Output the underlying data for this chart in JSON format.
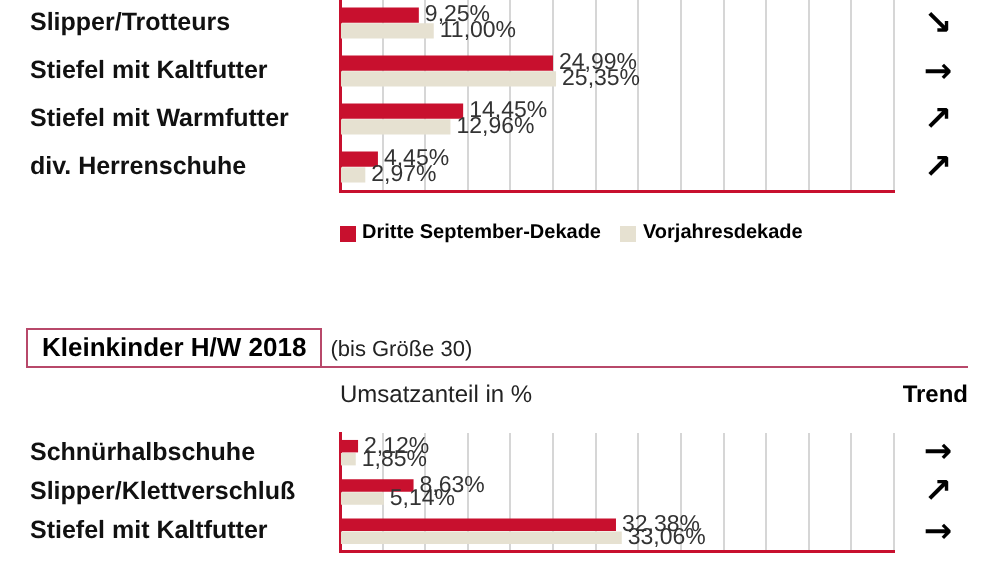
{
  "chart_data": [
    {
      "type": "bar",
      "orientation": "horizontal",
      "categories": [
        "Slipper/Trotteurs",
        "Stiefel mit Kaltfutter",
        "Stiefel mit Warmfutter",
        "div. Herrenschuhe"
      ],
      "series": [
        {
          "name": "Dritte September-Dekade",
          "color": "#c8102e",
          "values": [
            9.25,
            24.99,
            14.45,
            4.45
          ],
          "value_labels": [
            "9,25%",
            "24,99%",
            "14,45%",
            "4,45%"
          ]
        },
        {
          "name": "Vorjahresdekade",
          "color": "#e6e1d1",
          "values": [
            11.0,
            25.35,
            12.96,
            2.97
          ],
          "value_labels": [
            "11,00%",
            "25,35%",
            "12,96%",
            "2,97%"
          ]
        }
      ],
      "xlim": [
        0,
        65
      ],
      "tick_labels": "y",
      "grid": "x",
      "legend": "bottom",
      "annotations": [
        "↘",
        "→",
        "↗",
        "↗"
      ]
    },
    {
      "type": "bar",
      "orientation": "horizontal",
      "title": "Kleinkinder H/W 2018",
      "subtitle": "(bis Größe 30)",
      "xlabel": "Umsatzanteil in %",
      "categories": [
        "Schnürhalbschuhe",
        "Slipper/Klettverschluß",
        "Stiefel mit Kaltfutter"
      ],
      "series": [
        {
          "color": "#c8102e",
          "values": [
            2.12,
            8.63,
            32.38
          ],
          "value_labels": [
            "2,12%",
            "8,63%",
            "32,38%"
          ]
        },
        {
          "color": "#e6e1d1",
          "values": [
            1.85,
            5.14,
            33.06
          ],
          "value_labels": [
            "1,85%",
            "5,14%",
            "33,06%"
          ]
        }
      ],
      "xlim": [
        0,
        65
      ],
      "tick_labels": "y",
      "grid": "x",
      "annotations": [
        "Trend",
        "→",
        "↗",
        "→"
      ]
    }
  ]
}
